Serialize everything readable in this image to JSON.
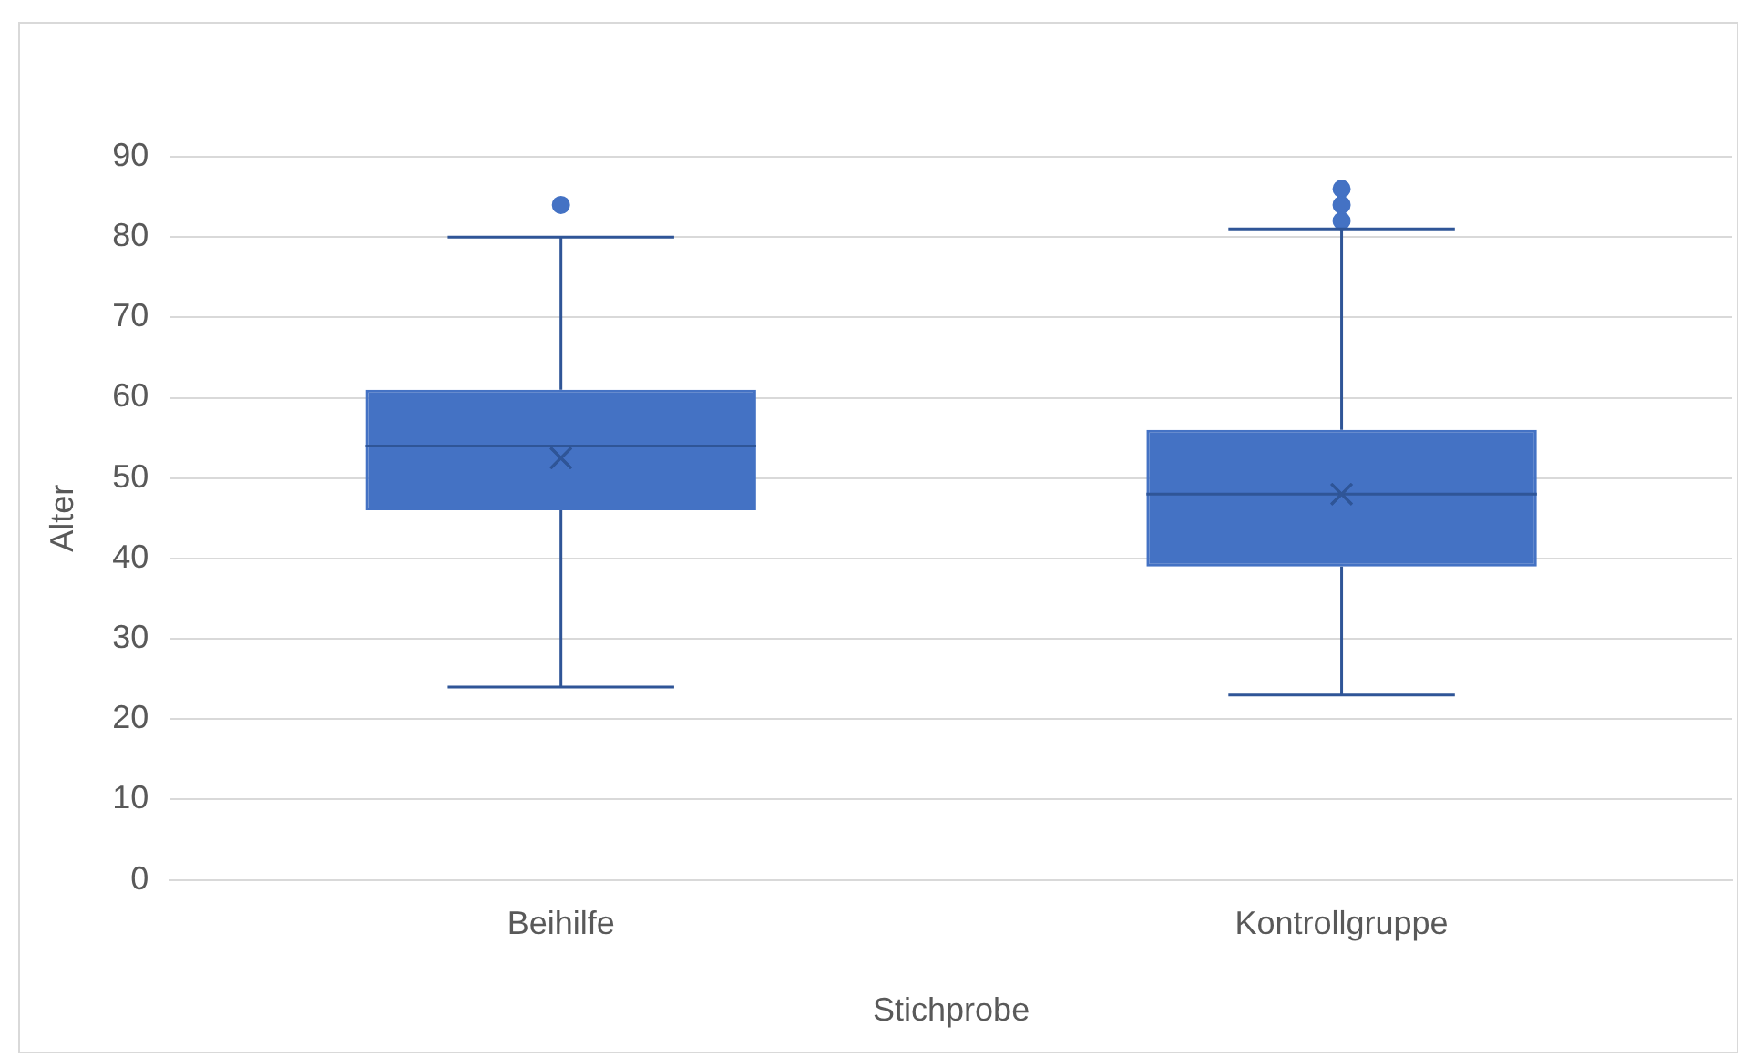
{
  "chart_data": {
    "type": "box",
    "categories": [
      "Beihilfe",
      "Kontrollgruppe"
    ],
    "color": "#4472c4",
    "boxes": [
      {
        "low": 24,
        "q1": 46,
        "median": 54,
        "q3": 61,
        "high": 80,
        "mean": 52.5,
        "outliers": [
          84
        ]
      },
      {
        "low": 23,
        "q1": 39,
        "median": 48,
        "q3": 56,
        "high": 81,
        "mean": 48,
        "outliers": [
          82,
          84,
          86
        ]
      }
    ],
    "ylim": [
      0,
      90
    ],
    "yticks": [
      0,
      10,
      20,
      30,
      40,
      50,
      60,
      70,
      80,
      90
    ],
    "ylabel": "Alter",
    "xlabel": "Stichprobe",
    "grid": "y",
    "legend": false,
    "marker": "cross"
  }
}
